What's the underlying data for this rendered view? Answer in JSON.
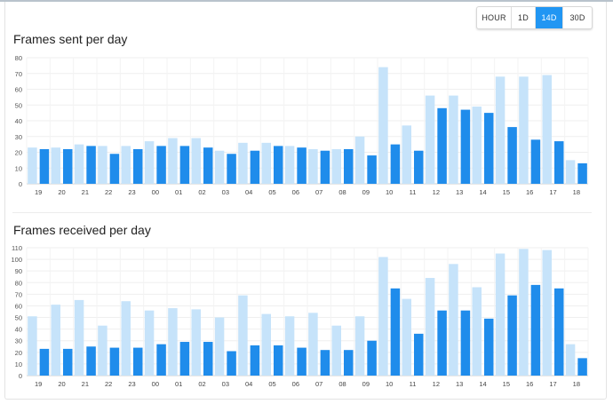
{
  "time_range": {
    "buttons": [
      "HOUR",
      "1D",
      "14D",
      "30D"
    ],
    "selected": "14D"
  },
  "colors": {
    "light": "#c6e3fa",
    "dark": "#1f8ceb"
  },
  "charts": {
    "sent": {
      "title": "Frames sent per day"
    },
    "received": {
      "title": "Frames received per day"
    }
  },
  "chart_data": [
    {
      "type": "bar",
      "title": "Frames sent per day",
      "categories": [
        "19",
        "20",
        "21",
        "22",
        "23",
        "00",
        "01",
        "02",
        "03",
        "04",
        "05",
        "06",
        "07",
        "08",
        "09",
        "10",
        "11",
        "12",
        "13",
        "14",
        "15",
        "16",
        "17",
        "18"
      ],
      "ylim": [
        0,
        80
      ],
      "yticks": [
        0,
        10,
        20,
        30,
        40,
        50,
        60,
        70,
        80
      ],
      "grid": true,
      "series": [
        {
          "values": [
            23,
            23,
            25,
            24,
            24,
            27,
            29,
            29,
            21,
            26,
            26,
            24,
            22,
            22,
            30,
            74,
            37,
            56,
            56,
            49,
            68,
            68,
            69,
            15
          ]
        },
        {
          "values": [
            22,
            22,
            24,
            19,
            22,
            24,
            24,
            23,
            19,
            21,
            24,
            23,
            21,
            22,
            18,
            25,
            21,
            48,
            47,
            45,
            36,
            28,
            27,
            13
          ]
        }
      ]
    },
    {
      "type": "bar",
      "title": "Frames received per day",
      "categories": [
        "19",
        "20",
        "21",
        "22",
        "23",
        "00",
        "01",
        "02",
        "03",
        "04",
        "05",
        "06",
        "07",
        "08",
        "09",
        "10",
        "11",
        "12",
        "13",
        "14",
        "15",
        "16",
        "17",
        "18"
      ],
      "ylim": [
        0,
        110
      ],
      "yticks": [
        0,
        10,
        20,
        30,
        40,
        50,
        60,
        70,
        80,
        90,
        100,
        110
      ],
      "grid": true,
      "series": [
        {
          "values": [
            51,
            61,
            65,
            43,
            64,
            56,
            58,
            57,
            50,
            69,
            53,
            51,
            54,
            43,
            51,
            102,
            66,
            84,
            96,
            76,
            105,
            109,
            108,
            27
          ]
        },
        {
          "values": [
            23,
            23,
            25,
            24,
            24,
            27,
            29,
            29,
            21,
            26,
            26,
            24,
            22,
            22,
            30,
            75,
            36,
            56,
            56,
            49,
            69,
            78,
            75,
            15
          ]
        }
      ]
    }
  ]
}
